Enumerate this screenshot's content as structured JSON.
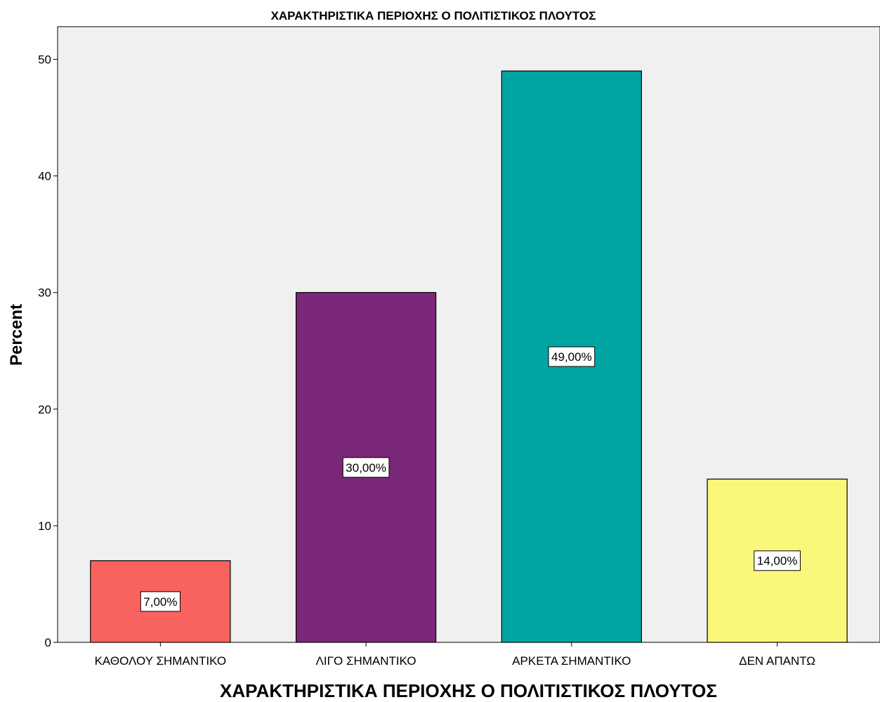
{
  "chart_data": {
    "type": "bar",
    "title": "ΧΑΡΑΚΤΗΡΙΣΤΙΚΑ ΠΕΡΙΟΧΗΣ Ο ΠΟΛΙΤΙΣΤΙΚΟΣ ΠΛΟΥΤΟΣ",
    "xlabel": "ΧΑΡΑΚΤΗΡΙΣΤΙΚΑ ΠΕΡΙΟΧΗΣ Ο ΠΟΛΙΤΙΣΤΙΚΟΣ ΠΛΟΥΤΟΣ",
    "ylabel": "Percent",
    "categories": [
      "ΚΑΘΟΛΟΥ ΣΗΜΑΝΤΙΚΟ",
      "ΛΙΓΟ ΣΗΜΑΝΤΙΚΟ",
      "ΑΡΚΕΤΑ ΣΗΜΑΝΤΙΚΟ",
      "ΔΕΝ ΑΠΑΝΤΩ"
    ],
    "values": [
      7,
      30,
      49,
      14
    ],
    "data_labels": [
      "7,00%",
      "30,00%",
      "49,00%",
      "14,00%"
    ],
    "colors": [
      "#f9635f",
      "#7b2779",
      "#00a5a3",
      "#fbf77a"
    ],
    "plot_background": "#f0f0f0",
    "ylim": [
      0,
      52.8
    ],
    "yticks": [
      0,
      10,
      20,
      30,
      40,
      50
    ],
    "grid": false
  }
}
